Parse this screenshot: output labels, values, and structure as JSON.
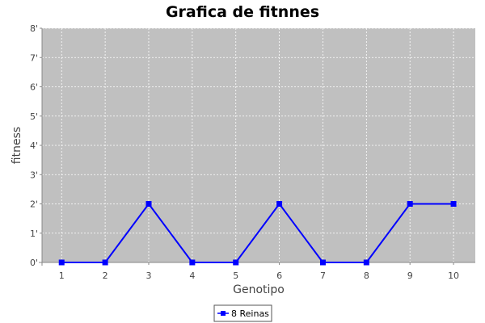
{
  "chart_data": {
    "type": "line",
    "title": "Grafica de fitnnes",
    "xlabel": "Genotipo",
    "ylabel": "fitness",
    "x": [
      1,
      2,
      3,
      4,
      5,
      6,
      7,
      8,
      9,
      10
    ],
    "xlim": [
      0.55,
      10.5
    ],
    "ylim": [
      0,
      8
    ],
    "y_tick_labels": [
      "0'",
      "1'",
      "2'",
      "3'",
      "4'",
      "5'",
      "6'",
      "7'",
      "8'"
    ],
    "x_tick_labels": [
      "1",
      "2",
      "3",
      "4",
      "5",
      "6",
      "7",
      "8",
      "9",
      "10"
    ],
    "grid": true,
    "legend_position": "bottom",
    "plot_background": "#c0c0c0",
    "series": [
      {
        "name": "8 Reinas",
        "color": "#0000ff",
        "marker": "square",
        "values": [
          0,
          0,
          2,
          0,
          0,
          2,
          0,
          0,
          2,
          2
        ]
      }
    ]
  }
}
